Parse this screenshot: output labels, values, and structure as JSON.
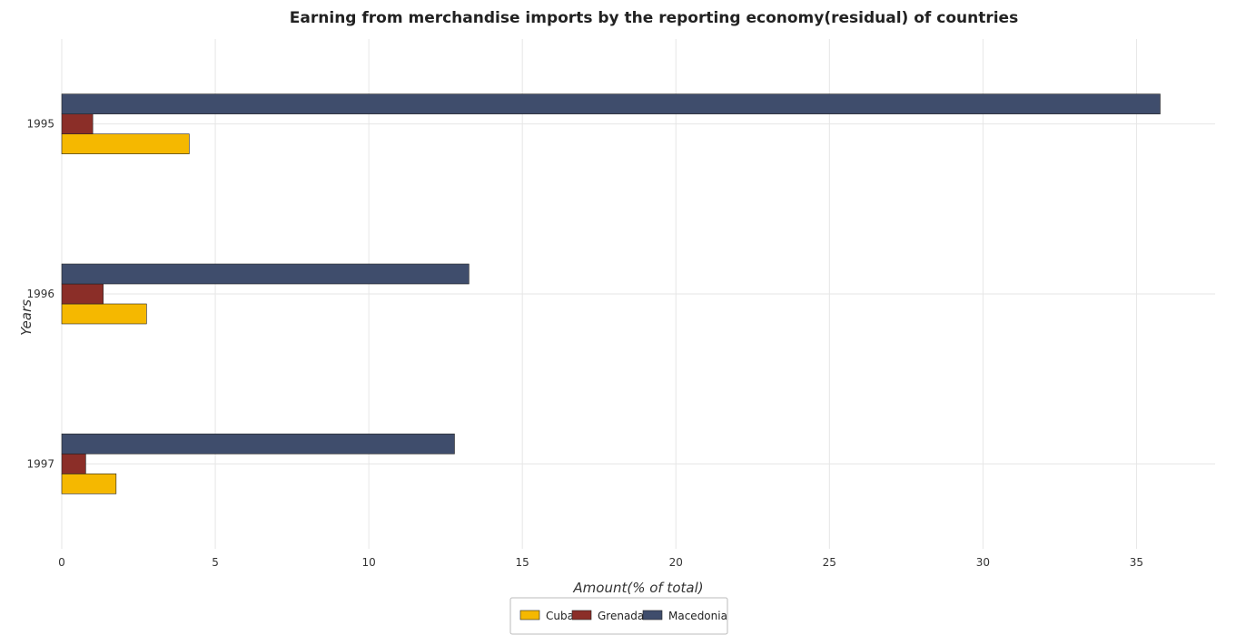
{
  "chart_data": {
    "type": "bar",
    "orientation": "horizontal",
    "title": "Earning from merchandise imports by the reporting economy(residual) of countries",
    "xlabel": "Amount(% of total)",
    "ylabel": "Years",
    "categories": [
      "1995",
      "1996",
      "1997"
    ],
    "series": [
      {
        "name": "Cuba",
        "color": "#f5b800",
        "values": [
          4.15,
          2.76,
          1.77
        ]
      },
      {
        "name": "Grenada",
        "color": "#8b2e28",
        "values": [
          1.01,
          1.35,
          0.78
        ]
      },
      {
        "name": "Macedonia",
        "color": "#3f4d6c",
        "values": [
          35.77,
          13.26,
          12.79
        ]
      }
    ],
    "xlim": [
      0,
      37.56
    ],
    "xticks": [
      0,
      5,
      10,
      15,
      20,
      25,
      30,
      35
    ],
    "grid": true,
    "legend_position": "bottom-center"
  }
}
